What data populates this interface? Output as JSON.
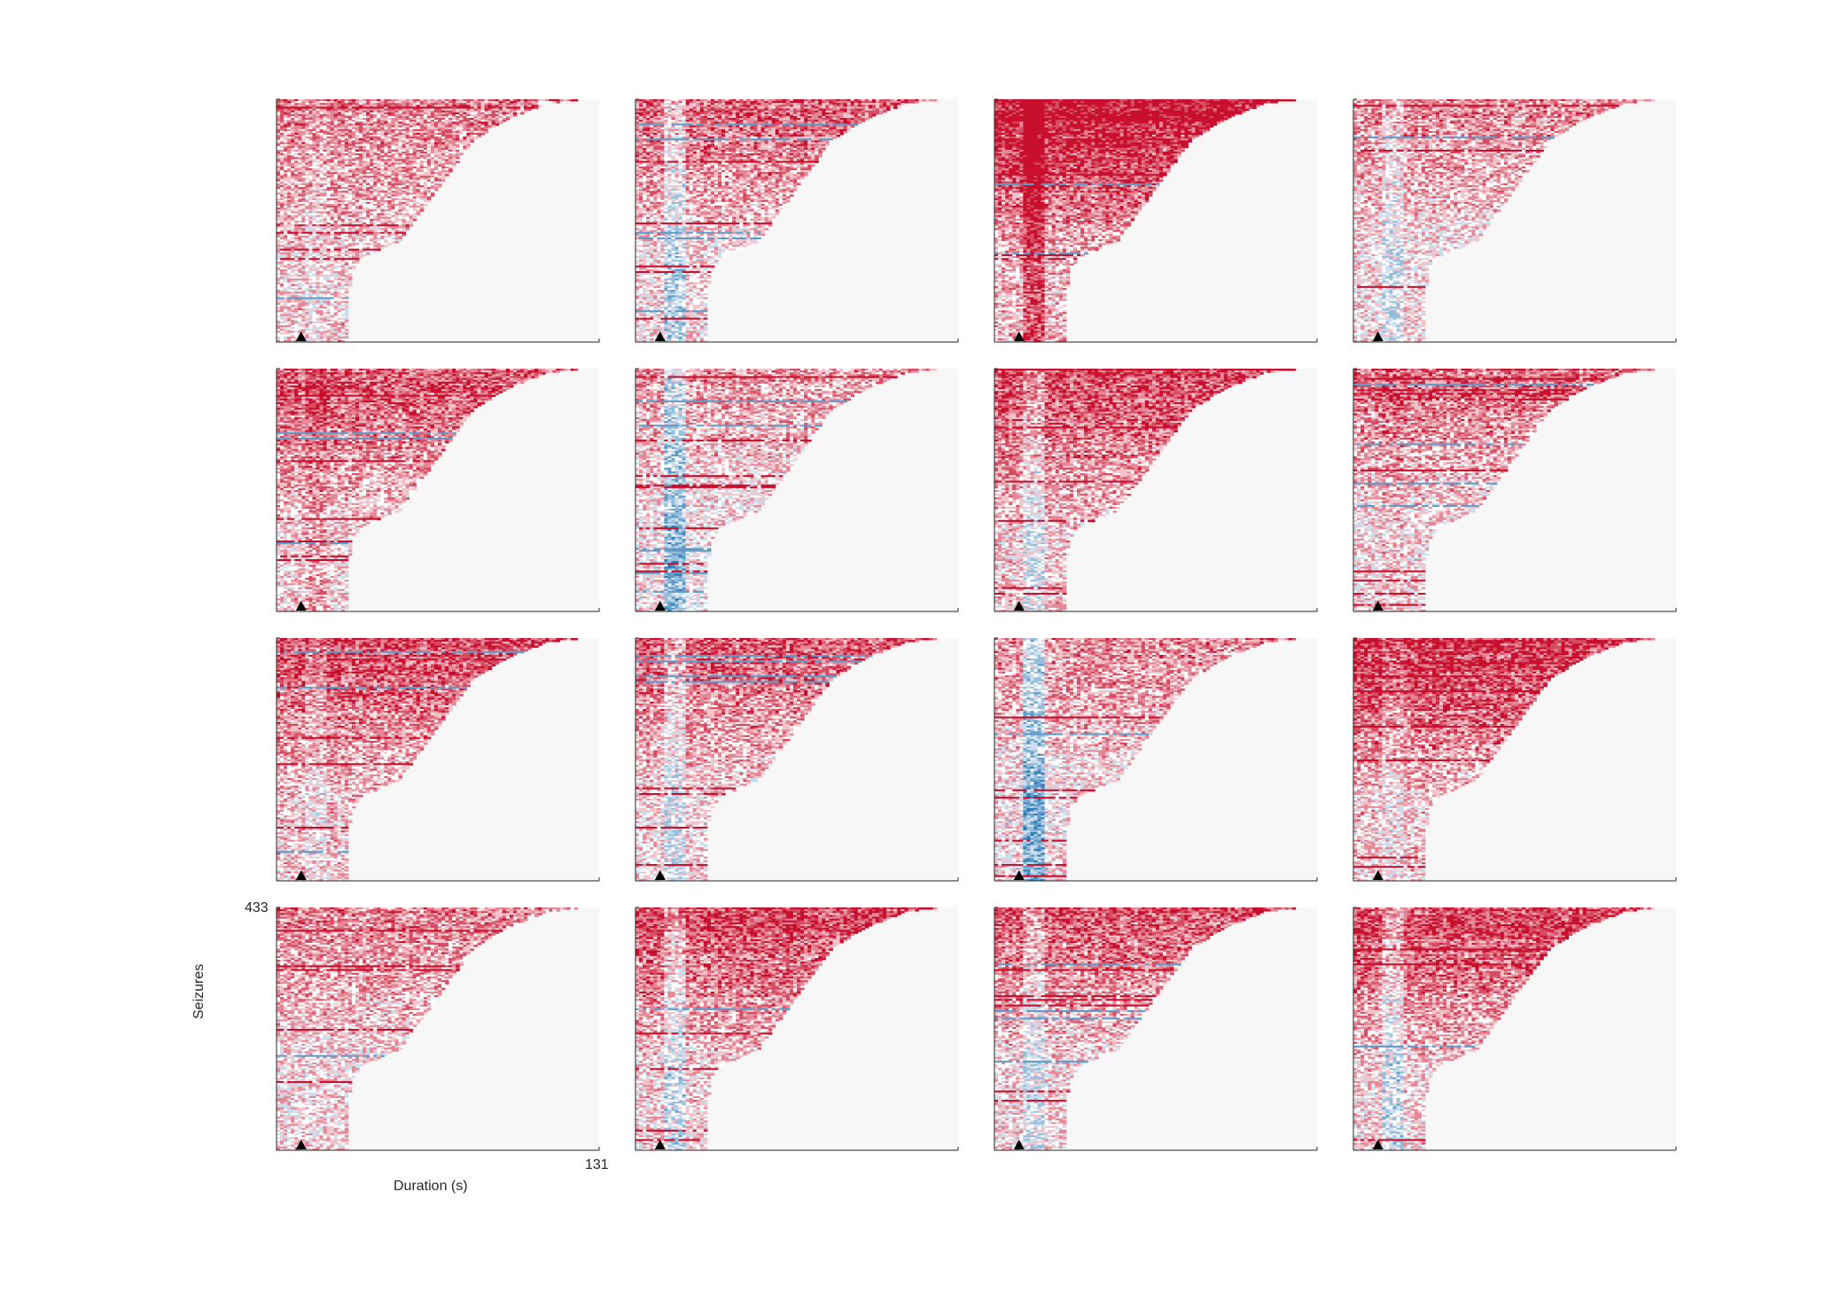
{
  "chart_data": {
    "type": "heatmap",
    "layout": {
      "rows": 4,
      "cols": 4
    },
    "panel_count": 16,
    "ylabel": "Seizures",
    "xlabel": "Duration (s)",
    "y_tick_top": "433",
    "x_tick_right": "131",
    "ylim": [
      0,
      433
    ],
    "xlim": [
      0,
      131
    ],
    "onset_marker": {
      "shape": "triangle",
      "x": 10
    },
    "background_color": "#f7f7f7",
    "colormap": {
      "low": "#2c7bb6",
      "mid": "#ffffff",
      "high": "#c8102e"
    },
    "duration_profile": {
      "seizure_index": [
        0,
        120,
        150,
        180,
        240,
        300,
        360,
        400,
        425,
        433
      ],
      "duration_s": [
        29,
        30,
        34,
        50,
        60,
        70,
        80,
        95,
        110,
        125
      ]
    },
    "panels": [
      {
        "mean_intensity": 0.3,
        "onset_band": -0.1,
        "late_band": 0.35
      },
      {
        "mean_intensity": 0.2,
        "onset_band": -0.5,
        "late_band": 0.55
      },
      {
        "mean_intensity": 0.45,
        "onset_band": 0.6,
        "late_band": 0.85
      },
      {
        "mean_intensity": 0.15,
        "onset_band": -0.3,
        "late_band": 0.4
      },
      {
        "mean_intensity": 0.3,
        "onset_band": 0.2,
        "late_band": 0.55
      },
      {
        "mean_intensity": 0.1,
        "onset_band": -0.7,
        "late_band": 0.35
      },
      {
        "mean_intensity": 0.35,
        "onset_band": -0.4,
        "late_band": 0.6
      },
      {
        "mean_intensity": 0.2,
        "onset_band": 0.1,
        "late_band": 0.5
      },
      {
        "mean_intensity": 0.35,
        "onset_band": -0.2,
        "late_band": 0.6
      },
      {
        "mean_intensity": 0.25,
        "onset_band": -0.4,
        "late_band": 0.55
      },
      {
        "mean_intensity": 0.1,
        "onset_band": -0.8,
        "late_band": 0.45
      },
      {
        "mean_intensity": 0.35,
        "onset_band": -0.2,
        "late_band": 0.75
      },
      {
        "mean_intensity": 0.2,
        "onset_band": 0.0,
        "late_band": 0.4
      },
      {
        "mean_intensity": 0.3,
        "onset_band": -0.5,
        "late_band": 0.65
      },
      {
        "mean_intensity": 0.25,
        "onset_band": -0.4,
        "late_band": 0.55
      },
      {
        "mean_intensity": 0.3,
        "onset_band": -0.5,
        "late_band": 0.65
      }
    ]
  }
}
